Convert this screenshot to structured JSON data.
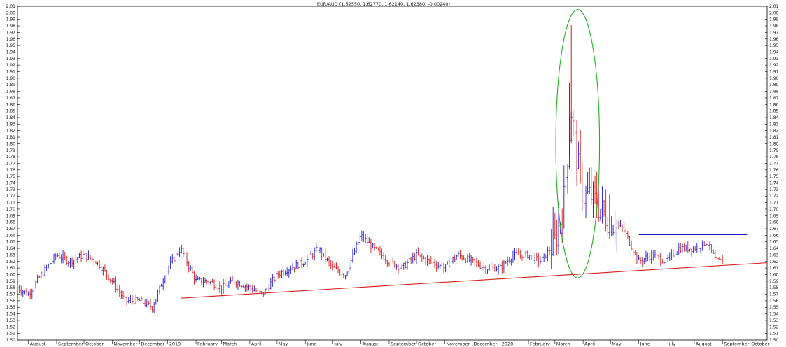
{
  "chart_data": {
    "type": "ohlc",
    "title": "EUR/AUD (1.62550, 1.62770, 1.62140, 1.62380, -0.00240)",
    "ylim": [
      1.5,
      2.01
    ],
    "ytick_step": 0.01,
    "grid": false,
    "colors": {
      "up": "#1a1adb",
      "down": "#d81e1e",
      "trendline": "#d81e1e",
      "resistance": "#1a1adb",
      "ellipse": "#22b022"
    },
    "x_labels": [
      "August",
      "September",
      "October",
      "November",
      "December",
      "2019",
      "February",
      "March",
      "April",
      "May",
      "June",
      "July",
      "August",
      "September",
      "October",
      "November",
      "December",
      "2020",
      "February",
      "March",
      "April",
      "May",
      "June",
      "July",
      "August",
      "September",
      "October"
    ],
    "label_dates": [
      "2018-08-01",
      "2018-09-01",
      "2018-10-01",
      "2018-11-01",
      "2018-12-01",
      "2019-01-01",
      "2019-02-01",
      "2019-03-01",
      "2019-04-01",
      "2019-05-01",
      "2019-06-01",
      "2019-07-01",
      "2019-08-01",
      "2019-09-01",
      "2019-10-01",
      "2019-11-01",
      "2019-12-01",
      "2020-01-01",
      "2020-02-01",
      "2020-03-01",
      "2020-04-01",
      "2020-05-01",
      "2020-06-01",
      "2020-07-01",
      "2020-08-01",
      "2020-09-01",
      "2020-10-01"
    ],
    "x_range": [
      "2018-07-20",
      "2020-10-20"
    ],
    "series": [
      {
        "dates": [
          "2018-07-20",
          "2018-08-01",
          "2018-08-15",
          "2018-09-01",
          "2018-09-15",
          "2018-10-01",
          "2018-10-15",
          "2018-11-01",
          "2018-11-15",
          "2018-12-01",
          "2018-12-15",
          "2019-01-01",
          "2019-01-15",
          "2019-02-01",
          "2019-02-15",
          "2019-03-01",
          "2019-03-15",
          "2019-04-01",
          "2019-04-15",
          "2019-05-01",
          "2019-05-15",
          "2019-06-01",
          "2019-06-15",
          "2019-07-01",
          "2019-07-15",
          "2019-08-01",
          "2019-08-15",
          "2019-09-01",
          "2019-09-15",
          "2019-10-01",
          "2019-10-15",
          "2019-11-01",
          "2019-11-15",
          "2019-12-01",
          "2019-12-15",
          "2020-01-01",
          "2020-01-15",
          "2020-02-01",
          "2020-02-15",
          "2020-03-01",
          "2020-03-10",
          "2020-03-19",
          "2020-03-25",
          "2020-04-01",
          "2020-04-10",
          "2020-04-20",
          "2020-05-01",
          "2020-05-15",
          "2020-06-01",
          "2020-06-15",
          "2020-07-01",
          "2020-07-15",
          "2020-08-01",
          "2020-08-15",
          "2020-08-25",
          "2020-09-02"
        ],
        "close": [
          1.58,
          1.57,
          1.6,
          1.63,
          1.62,
          1.63,
          1.62,
          1.59,
          1.56,
          1.56,
          1.55,
          1.61,
          1.64,
          1.59,
          1.59,
          1.58,
          1.59,
          1.58,
          1.57,
          1.6,
          1.61,
          1.62,
          1.64,
          1.61,
          1.6,
          1.66,
          1.64,
          1.62,
          1.61,
          1.63,
          1.62,
          1.61,
          1.63,
          1.62,
          1.61,
          1.61,
          1.63,
          1.63,
          1.62,
          1.65,
          1.7,
          1.85,
          1.78,
          1.72,
          1.72,
          1.7,
          1.68,
          1.67,
          1.62,
          1.63,
          1.62,
          1.64,
          1.64,
          1.65,
          1.62,
          1.62
        ]
      }
    ],
    "trendline": {
      "start": [
        "2019-01-15",
        1.564
      ],
      "end": [
        "2020-10-20",
        1.618
      ]
    },
    "resistance": {
      "start": [
        "2020-06-01",
        1.661
      ],
      "end": [
        "2020-09-28",
        1.661
      ]
    },
    "ellipse": {
      "center": [
        "2020-03-26",
        1.8
      ],
      "half_width_days": 24,
      "half_height": 0.205
    }
  }
}
